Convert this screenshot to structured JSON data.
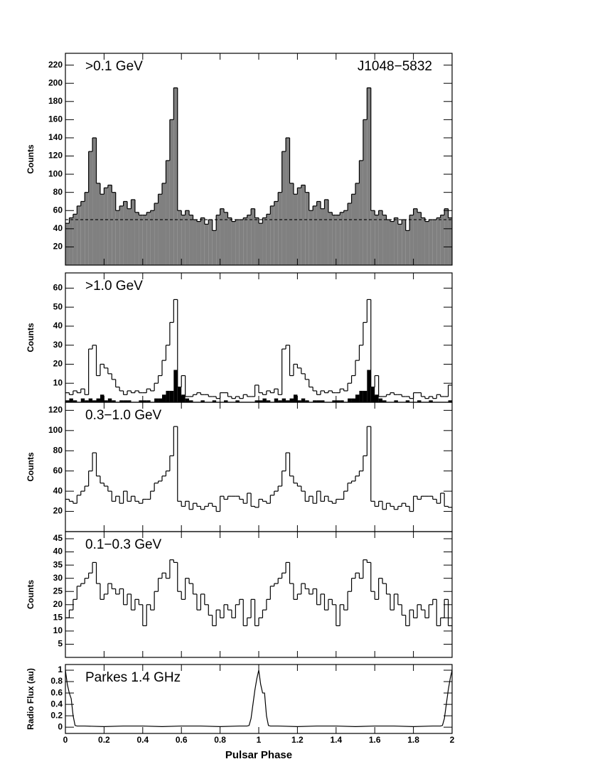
{
  "chart_data": [
    {
      "type": "histogram",
      "annotation": ">0.1 GeV",
      "title": "J1048−5832",
      "ylabel": "Counts",
      "bins": [
        0,
        0.02,
        0.04,
        0.06,
        0.08,
        0.1,
        0.12,
        0.14,
        0.16,
        0.18,
        0.2,
        0.22,
        0.24,
        0.26,
        0.28,
        0.3,
        0.32,
        0.34,
        0.36,
        0.38,
        0.4,
        0.42,
        0.44,
        0.46,
        0.48,
        0.5,
        0.52,
        0.54,
        0.56,
        0.58,
        0.6,
        0.62,
        0.64,
        0.66,
        0.68,
        0.7,
        0.72,
        0.74,
        0.76,
        0.78,
        0.8,
        0.82,
        0.84,
        0.86,
        0.88,
        0.9,
        0.92,
        0.94,
        0.96,
        0.98,
        1,
        1.02,
        1.04,
        1.06,
        1.08,
        1.1,
        1.12,
        1.14,
        1.16,
        1.18,
        1.2,
        1.22,
        1.24,
        1.26,
        1.28,
        1.3,
        1.32,
        1.34,
        1.36,
        1.38,
        1.4,
        1.42,
        1.44,
        1.46,
        1.48,
        1.5,
        1.52,
        1.54,
        1.56,
        1.58,
        1.6,
        1.62,
        1.64,
        1.66,
        1.68,
        1.7,
        1.72,
        1.74,
        1.76,
        1.78,
        1.8,
        1.82,
        1.84,
        1.86,
        1.88,
        1.9,
        1.92,
        1.94,
        1.96,
        1.98,
        2
      ],
      "series": [
        {
          "color": "#808080",
          "filled": true,
          "values": [
            46,
            52,
            56,
            65,
            70,
            80,
            125,
            140,
            90,
            78,
            85,
            88,
            80,
            60,
            65,
            70,
            62,
            72,
            58,
            55,
            55,
            58,
            60,
            68,
            78,
            90,
            115,
            160,
            195,
            60,
            55,
            60,
            55,
            50,
            48,
            52,
            45,
            50,
            38,
            55,
            62,
            58,
            52,
            48,
            50,
            50,
            52,
            55,
            62,
            52,
            46,
            52,
            56,
            65,
            70,
            80,
            125,
            140,
            90,
            78,
            85,
            88,
            80,
            60,
            65,
            70,
            62,
            72,
            58,
            55,
            55,
            58,
            60,
            68,
            78,
            90,
            115,
            160,
            195,
            60,
            55,
            60,
            55,
            50,
            48,
            52,
            45,
            50,
            38,
            55,
            62,
            58,
            52,
            48,
            50,
            50,
            52,
            55,
            62,
            52
          ]
        }
      ],
      "background": 50,
      "xlim": [
        0,
        2
      ],
      "xticks": [
        0,
        0.2,
        0.4,
        0.6,
        0.8,
        1,
        1.2,
        1.4,
        1.6,
        1.8,
        2
      ],
      "ylim": [
        0,
        233
      ],
      "yticks": [
        20,
        40,
        60,
        80,
        100,
        120,
        140,
        160,
        180,
        200,
        220
      ]
    },
    {
      "type": "histogram",
      "annotation": ">1.0 GeV",
      "ylabel": "Counts",
      "bins": [
        0,
        0.02,
        0.04,
        0.06,
        0.08,
        0.1,
        0.12,
        0.14,
        0.16,
        0.18,
        0.2,
        0.22,
        0.24,
        0.26,
        0.28,
        0.3,
        0.32,
        0.34,
        0.36,
        0.38,
        0.4,
        0.42,
        0.44,
        0.46,
        0.48,
        0.5,
        0.52,
        0.54,
        0.56,
        0.58,
        0.6,
        0.62,
        0.64,
        0.66,
        0.68,
        0.7,
        0.72,
        0.74,
        0.76,
        0.78,
        0.8,
        0.82,
        0.84,
        0.86,
        0.88,
        0.9,
        0.92,
        0.94,
        0.96,
        0.98,
        1,
        1.02,
        1.04,
        1.06,
        1.08,
        1.1,
        1.12,
        1.14,
        1.16,
        1.18,
        1.2,
        1.22,
        1.24,
        1.26,
        1.28,
        1.3,
        1.32,
        1.34,
        1.36,
        1.38,
        1.4,
        1.42,
        1.44,
        1.46,
        1.48,
        1.5,
        1.52,
        1.54,
        1.56,
        1.58,
        1.6,
        1.62,
        1.64,
        1.66,
        1.68,
        1.7,
        1.72,
        1.74,
        1.76,
        1.78,
        1.8,
        1.82,
        1.84,
        1.86,
        1.88,
        1.9,
        1.92,
        1.94,
        1.96,
        1.98,
        2
      ],
      "series": [
        {
          "color": "#000000",
          "filled": false,
          "values": [
            5,
            4,
            6,
            5,
            7,
            4,
            28,
            30,
            14,
            20,
            18,
            15,
            12,
            8,
            6,
            4,
            6,
            5,
            6,
            5,
            5,
            7,
            6,
            10,
            14,
            22,
            30,
            42,
            54,
            8,
            14,
            3,
            3,
            4,
            5,
            4,
            4,
            3,
            3,
            2,
            5,
            5,
            3,
            2,
            3,
            2,
            4,
            3,
            3,
            9,
            5,
            4,
            6,
            5,
            7,
            4,
            28,
            30,
            14,
            20,
            18,
            15,
            12,
            8,
            6,
            4,
            6,
            5,
            6,
            5,
            5,
            7,
            6,
            10,
            14,
            22,
            30,
            42,
            54,
            8,
            14,
            3,
            3,
            4,
            5,
            4,
            4,
            3,
            3,
            2,
            5,
            5,
            3,
            2,
            3,
            2,
            4,
            3,
            3,
            9
          ]
        },
        {
          "color": "#000000",
          "filled": true,
          "values": [
            1,
            2,
            1,
            0,
            2,
            1,
            2,
            1,
            2,
            4,
            1,
            2,
            1,
            0,
            1,
            1,
            1,
            0,
            0,
            1,
            1,
            1,
            0,
            2,
            2,
            4,
            6,
            6,
            17,
            8,
            4,
            2,
            1,
            0,
            0,
            1,
            0,
            0,
            1,
            0,
            0,
            1,
            0,
            0,
            1,
            0,
            0,
            0,
            0,
            1,
            1,
            2,
            1,
            0,
            2,
            1,
            2,
            1,
            2,
            4,
            1,
            2,
            1,
            0,
            1,
            1,
            1,
            0,
            0,
            1,
            1,
            1,
            0,
            2,
            2,
            4,
            6,
            6,
            17,
            8,
            4,
            2,
            1,
            0,
            0,
            1,
            0,
            0,
            1,
            0,
            0,
            1,
            0,
            0,
            1,
            0,
            0,
            0,
            0,
            1
          ]
        }
      ],
      "xlim": [
        0,
        2
      ],
      "xticks": [
        0,
        0.2,
        0.4,
        0.6,
        0.8,
        1,
        1.2,
        1.4,
        1.6,
        1.8,
        2
      ],
      "ylim": [
        0,
        68
      ],
      "yticks": [
        10,
        20,
        30,
        40,
        50,
        60
      ]
    },
    {
      "type": "histogram",
      "annotation": "0.3−1.0 GeV",
      "ylabel": "Counts",
      "bins": [
        0,
        0.02,
        0.04,
        0.06,
        0.08,
        0.1,
        0.12,
        0.14,
        0.16,
        0.18,
        0.2,
        0.22,
        0.24,
        0.26,
        0.28,
        0.3,
        0.32,
        0.34,
        0.36,
        0.38,
        0.4,
        0.42,
        0.44,
        0.46,
        0.48,
        0.5,
        0.52,
        0.54,
        0.56,
        0.58,
        0.6,
        0.62,
        0.64,
        0.66,
        0.68,
        0.7,
        0.72,
        0.74,
        0.76,
        0.78,
        0.8,
        0.82,
        0.84,
        0.86,
        0.88,
        0.9,
        0.92,
        0.94,
        0.96,
        0.98,
        1,
        1.02,
        1.04,
        1.06,
        1.08,
        1.1,
        1.12,
        1.14,
        1.16,
        1.18,
        1.2,
        1.22,
        1.24,
        1.26,
        1.28,
        1.3,
        1.32,
        1.34,
        1.36,
        1.38,
        1.4,
        1.42,
        1.44,
        1.46,
        1.48,
        1.5,
        1.52,
        1.54,
        1.56,
        1.58,
        1.6,
        1.62,
        1.64,
        1.66,
        1.68,
        1.7,
        1.72,
        1.74,
        1.76,
        1.78,
        1.8,
        1.82,
        1.84,
        1.86,
        1.88,
        1.9,
        1.92,
        1.94,
        1.96,
        1.98,
        2
      ],
      "series": [
        {
          "color": "#000000",
          "filled": false,
          "values": [
            32,
            30,
            28,
            36,
            40,
            45,
            60,
            78,
            55,
            48,
            45,
            40,
            30,
            35,
            28,
            40,
            30,
            35,
            30,
            28,
            32,
            32,
            40,
            48,
            50,
            55,
            60,
            75,
            104,
            30,
            25,
            30,
            22,
            28,
            25,
            22,
            25,
            28,
            25,
            20,
            35,
            32,
            35,
            35,
            35,
            32,
            28,
            38,
            25,
            24,
            32,
            30,
            28,
            36,
            40,
            45,
            60,
            78,
            55,
            48,
            45,
            40,
            30,
            35,
            28,
            40,
            30,
            35,
            30,
            28,
            32,
            32,
            40,
            48,
            50,
            55,
            60,
            75,
            104,
            30,
            25,
            30,
            22,
            28,
            25,
            22,
            25,
            28,
            25,
            20,
            35,
            32,
            35,
            35,
            35,
            32,
            28,
            38,
            25,
            24
          ]
        }
      ],
      "xlim": [
        0,
        2
      ],
      "xticks": [
        0,
        0.2,
        0.4,
        0.6,
        0.8,
        1,
        1.2,
        1.4,
        1.6,
        1.8,
        2
      ],
      "ylim": [
        0,
        128
      ],
      "yticks": [
        20,
        40,
        60,
        80,
        100,
        120
      ]
    },
    {
      "type": "histogram",
      "annotation": "0.1−0.3 GeV",
      "ylabel": "Counts",
      "bins": [
        0,
        0.02,
        0.04,
        0.06,
        0.08,
        0.1,
        0.12,
        0.14,
        0.16,
        0.18,
        0.2,
        0.22,
        0.24,
        0.26,
        0.28,
        0.3,
        0.32,
        0.34,
        0.36,
        0.38,
        0.4,
        0.42,
        0.44,
        0.46,
        0.48,
        0.5,
        0.52,
        0.54,
        0.56,
        0.58,
        0.6,
        0.62,
        0.64,
        0.66,
        0.68,
        0.7,
        0.72,
        0.74,
        0.76,
        0.78,
        0.8,
        0.82,
        0.84,
        0.86,
        0.88,
        0.9,
        0.92,
        0.94,
        0.96,
        0.98,
        1,
        1.02,
        1.04,
        1.06,
        1.08,
        1.1,
        1.12,
        1.14,
        1.16,
        1.18,
        1.2,
        1.22,
        1.24,
        1.26,
        1.28,
        1.3,
        1.32,
        1.34,
        1.36,
        1.38,
        1.4,
        1.42,
        1.44,
        1.46,
        1.48,
        1.5,
        1.52,
        1.54,
        1.56,
        1.58,
        1.6,
        1.62,
        1.64,
        1.66,
        1.68,
        1.7,
        1.72,
        1.74,
        1.76,
        1.78,
        1.8,
        1.82,
        1.84,
        1.86,
        1.88,
        1.9,
        1.92,
        1.94,
        1.96,
        1.98,
        2
      ],
      "series": [
        {
          "color": "#000000",
          "filled": false,
          "values": [
            15,
            18,
            22,
            27,
            28,
            30,
            32,
            36,
            28,
            22,
            24,
            28,
            26,
            24,
            26,
            20,
            24,
            18,
            22,
            20,
            12,
            20,
            18,
            25,
            30,
            32,
            30,
            37,
            36,
            25,
            22,
            30,
            28,
            24,
            18,
            24,
            20,
            16,
            12,
            18,
            15,
            20,
            18,
            15,
            20,
            22,
            12,
            15,
            22,
            12,
            15,
            18,
            22,
            27,
            28,
            30,
            32,
            36,
            28,
            22,
            24,
            28,
            26,
            24,
            26,
            20,
            24,
            18,
            22,
            20,
            12,
            20,
            18,
            25,
            30,
            32,
            30,
            37,
            36,
            25,
            22,
            30,
            28,
            24,
            18,
            24,
            20,
            16,
            12,
            18,
            15,
            20,
            18,
            15,
            20,
            22,
            12,
            15,
            22,
            12
          ]
        }
      ],
      "xlim": [
        0,
        2
      ],
      "xticks": [
        0,
        0.2,
        0.4,
        0.6,
        0.8,
        1,
        1.2,
        1.4,
        1.6,
        1.8,
        2
      ],
      "ylim": [
        0,
        47.7
      ],
      "yticks": [
        5,
        10,
        15,
        20,
        25,
        30,
        35,
        40,
        45
      ]
    },
    {
      "type": "line",
      "annotation": "Parkes 1.4 GHz",
      "ylabel": "Radio Flux (au)",
      "xlabel": "Pulsar Phase",
      "x": [
        0,
        0.01,
        0.02,
        0.03,
        0.04,
        0.05,
        0.06,
        0.1,
        0.2,
        0.3,
        0.4,
        0.5,
        0.6,
        0.7,
        0.8,
        0.9,
        0.94,
        0.95,
        0.96,
        0.97,
        0.98,
        0.99,
        1,
        1.01,
        1.02,
        1.03,
        1.04,
        1.05,
        1.06,
        1.1,
        1.2,
        1.3,
        1.4,
        1.5,
        1.6,
        1.7,
        1.8,
        1.9,
        1.94,
        1.95,
        1.96,
        1.97,
        1.98,
        1.99,
        2
      ],
      "y": [
        1,
        0.75,
        0.6,
        0.5,
        0.2,
        0.03,
        0.02,
        0.02,
        0.01,
        0.02,
        0.02,
        0.01,
        0.02,
        0.02,
        0.01,
        0.02,
        0.02,
        0.03,
        0.15,
        0.4,
        0.65,
        0.85,
        1,
        0.75,
        0.6,
        0.6,
        0.2,
        0.03,
        0.02,
        0.02,
        0.01,
        0.02,
        0.02,
        0.01,
        0.02,
        0.02,
        0.01,
        0.02,
        0.02,
        0.03,
        0.15,
        0.4,
        0.65,
        0.85,
        1
      ],
      "color": "#000000",
      "xlim": [
        0,
        2
      ],
      "xticks": [
        0,
        0.2,
        0.4,
        0.6,
        0.8,
        1,
        1.2,
        1.4,
        1.6,
        1.8,
        2
      ],
      "ylim": [
        -0.11,
        1.1
      ],
      "yticks": [
        0,
        0.2,
        0.4,
        0.6,
        0.8,
        1
      ]
    }
  ]
}
